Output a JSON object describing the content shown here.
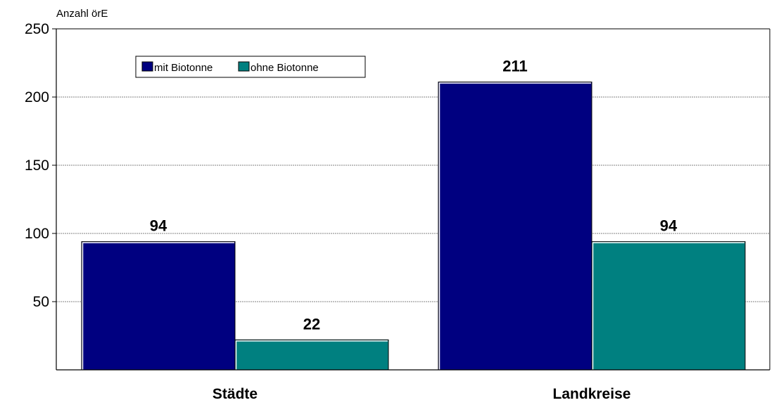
{
  "chart_data": {
    "type": "bar",
    "title": "",
    "xlabel": "",
    "ylabel": "Anzahl örE",
    "categories": [
      "Städte",
      "Landkreise"
    ],
    "series": [
      {
        "name": "mit Biotonne",
        "values": [
          94,
          211
        ]
      },
      {
        "name": "ohne Biotonne",
        "values": [
          22,
          94
        ]
      }
    ],
    "ylim": [
      0,
      250
    ],
    "yticks": [
      50,
      100,
      150,
      200,
      250
    ],
    "grid": true,
    "legend_position": "top-left",
    "colors": [
      "#000080",
      "#008080"
    ]
  }
}
